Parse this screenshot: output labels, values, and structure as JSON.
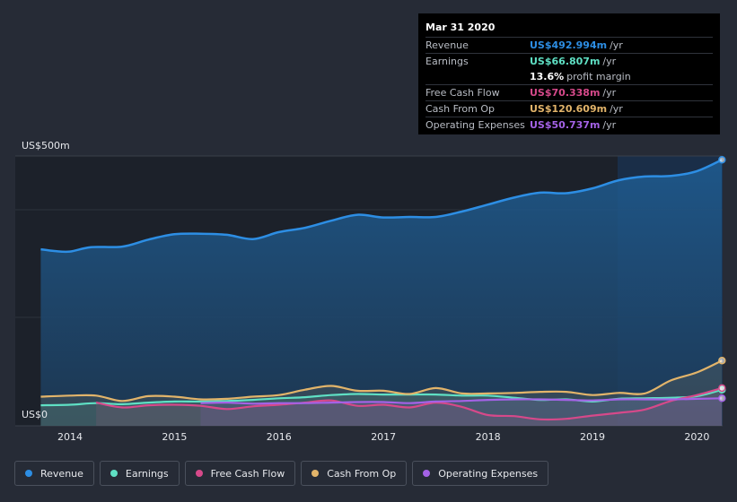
{
  "chart_data": {
    "type": "area",
    "y_axis": {
      "top_label": "US$500m",
      "bottom_label": "US$0",
      "ylim": [
        0,
        500
      ]
    },
    "x_axis": {
      "ticks": [
        "2014",
        "2015",
        "2016",
        "2017",
        "2018",
        "2019",
        "2020"
      ],
      "xlim": [
        2013.7,
        2020.25
      ]
    },
    "series": [
      {
        "name": "Revenue",
        "color": "#2d8ee4",
        "points": [
          [
            2013.72,
            327
          ],
          [
            2013.85,
            324
          ],
          [
            2014.0,
            323
          ],
          [
            2014.2,
            331
          ],
          [
            2014.5,
            332
          ],
          [
            2014.75,
            345
          ],
          [
            2015.0,
            355
          ],
          [
            2015.25,
            356
          ],
          [
            2015.5,
            354
          ],
          [
            2015.75,
            346
          ],
          [
            2016.0,
            359
          ],
          [
            2016.25,
            367
          ],
          [
            2016.5,
            380
          ],
          [
            2016.75,
            391
          ],
          [
            2017.0,
            386
          ],
          [
            2017.25,
            387
          ],
          [
            2017.5,
            387
          ],
          [
            2017.75,
            397
          ],
          [
            2018.0,
            410
          ],
          [
            2018.25,
            423
          ],
          [
            2018.5,
            432
          ],
          [
            2018.75,
            431
          ],
          [
            2019.0,
            440
          ],
          [
            2019.25,
            455
          ],
          [
            2019.5,
            462
          ],
          [
            2019.75,
            463
          ],
          [
            2020.0,
            472
          ],
          [
            2020.24,
            493
          ]
        ]
      },
      {
        "name": "Earnings",
        "color": "#5fe0c4",
        "points": [
          [
            2013.72,
            38
          ],
          [
            2014.0,
            39
          ],
          [
            2014.25,
            42
          ],
          [
            2014.5,
            40
          ],
          [
            2014.75,
            43
          ],
          [
            2015.0,
            45
          ],
          [
            2015.25,
            45
          ],
          [
            2015.5,
            46
          ],
          [
            2015.75,
            48
          ],
          [
            2016.0,
            51
          ],
          [
            2016.25,
            53
          ],
          [
            2016.5,
            57
          ],
          [
            2016.75,
            59
          ],
          [
            2017.0,
            58
          ],
          [
            2017.25,
            58
          ],
          [
            2017.5,
            58
          ],
          [
            2017.75,
            56
          ],
          [
            2018.0,
            56
          ],
          [
            2018.25,
            52
          ],
          [
            2018.5,
            48
          ],
          [
            2018.75,
            49
          ],
          [
            2019.0,
            45
          ],
          [
            2019.25,
            50
          ],
          [
            2019.5,
            51
          ],
          [
            2019.75,
            52
          ],
          [
            2020.0,
            55
          ],
          [
            2020.24,
            67
          ]
        ]
      },
      {
        "name": "Free Cash Flow",
        "color": "#d6498a",
        "points": [
          [
            2014.25,
            43
          ],
          [
            2014.5,
            34
          ],
          [
            2014.75,
            38
          ],
          [
            2015.0,
            39
          ],
          [
            2015.25,
            37
          ],
          [
            2015.5,
            31
          ],
          [
            2015.75,
            36
          ],
          [
            2016.0,
            39
          ],
          [
            2016.25,
            43
          ],
          [
            2016.5,
            47
          ],
          [
            2016.75,
            37
          ],
          [
            2017.0,
            39
          ],
          [
            2017.25,
            34
          ],
          [
            2017.5,
            43
          ],
          [
            2017.75,
            35
          ],
          [
            2018.0,
            20
          ],
          [
            2018.25,
            18
          ],
          [
            2018.5,
            12
          ],
          [
            2018.75,
            13
          ],
          [
            2019.0,
            19
          ],
          [
            2019.25,
            24
          ],
          [
            2019.5,
            30
          ],
          [
            2019.75,
            46
          ],
          [
            2020.0,
            57
          ],
          [
            2020.24,
            70
          ]
        ]
      },
      {
        "name": "Cash From Op",
        "color": "#e2b46a",
        "points": [
          [
            2013.72,
            54
          ],
          [
            2014.0,
            56
          ],
          [
            2014.25,
            56
          ],
          [
            2014.5,
            46
          ],
          [
            2014.75,
            55
          ],
          [
            2015.0,
            54
          ],
          [
            2015.25,
            49
          ],
          [
            2015.5,
            50
          ],
          [
            2015.75,
            54
          ],
          [
            2016.0,
            57
          ],
          [
            2016.25,
            67
          ],
          [
            2016.5,
            74
          ],
          [
            2016.75,
            65
          ],
          [
            2017.0,
            65
          ],
          [
            2017.25,
            59
          ],
          [
            2017.5,
            70
          ],
          [
            2017.75,
            60
          ],
          [
            2018.0,
            60
          ],
          [
            2018.25,
            61
          ],
          [
            2018.5,
            63
          ],
          [
            2018.75,
            63
          ],
          [
            2019.0,
            57
          ],
          [
            2019.25,
            61
          ],
          [
            2019.5,
            60
          ],
          [
            2019.75,
            84
          ],
          [
            2020.0,
            99
          ],
          [
            2020.24,
            121
          ]
        ]
      },
      {
        "name": "Operating Expenses",
        "color": "#a462e6",
        "points": [
          [
            2015.25,
            42
          ],
          [
            2015.5,
            43
          ],
          [
            2015.75,
            41
          ],
          [
            2016.0,
            42
          ],
          [
            2016.25,
            42
          ],
          [
            2016.5,
            43
          ],
          [
            2016.75,
            44
          ],
          [
            2017.0,
            44
          ],
          [
            2017.25,
            42
          ],
          [
            2017.5,
            45
          ],
          [
            2017.75,
            46
          ],
          [
            2018.0,
            48
          ],
          [
            2018.25,
            49
          ],
          [
            2018.5,
            49
          ],
          [
            2018.75,
            48
          ],
          [
            2019.0,
            47
          ],
          [
            2019.25,
            49
          ],
          [
            2019.5,
            49
          ],
          [
            2019.75,
            49
          ],
          [
            2020.0,
            50
          ],
          [
            2020.24,
            51
          ]
        ]
      }
    ],
    "grid": true,
    "legend_position": "bottom-left"
  },
  "tooltip": {
    "date": "Mar 31 2020",
    "rows": [
      {
        "name": "Revenue",
        "value": "US$492.994m",
        "unit": "/yr",
        "color": "#2d8ee4"
      },
      {
        "name": "Earnings",
        "value": "US$66.807m",
        "unit": "/yr",
        "color": "#5fe0c4"
      },
      {
        "name": "",
        "value": "13.6%",
        "unit": "profit margin",
        "color": "#ffffff"
      },
      {
        "name": "Free Cash Flow",
        "value": "US$70.338m",
        "unit": "/yr",
        "color": "#d6498a"
      },
      {
        "name": "Cash From Op",
        "value": "US$120.609m",
        "unit": "/yr",
        "color": "#e2b46a"
      },
      {
        "name": "Operating Expenses",
        "value": "US$50.737m",
        "unit": "/yr",
        "color": "#a462e6"
      }
    ]
  },
  "legend": [
    {
      "label": "Revenue",
      "color": "#2d8ee4"
    },
    {
      "label": "Earnings",
      "color": "#5fe0c4"
    },
    {
      "label": "Free Cash Flow",
      "color": "#d6498a"
    },
    {
      "label": "Cash From Op",
      "color": "#e2b46a"
    },
    {
      "label": "Operating Expenses",
      "color": "#a462e6"
    }
  ]
}
